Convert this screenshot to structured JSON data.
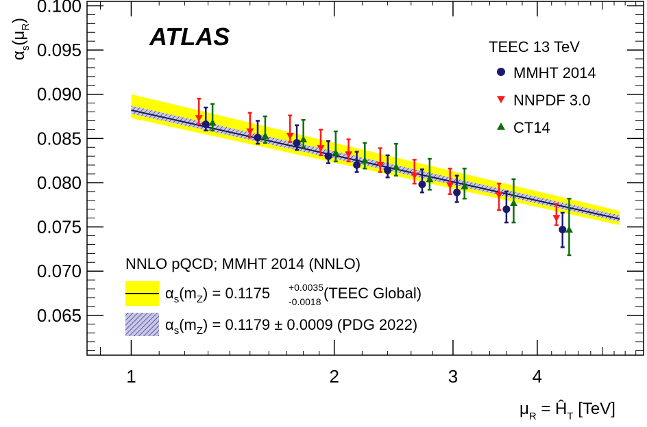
{
  "chart_data": {
    "type": "scatter",
    "experiment_label": "ATLAS",
    "measurement_label": "TEEC 13 TeV",
    "xlabel": {
      "base": "μ",
      "base_sub": "R",
      "eq": " = ",
      "var": "Ĥ",
      "var_sub": "T",
      "unit": " [TeV]"
    },
    "ylabel": {
      "base": "α",
      "base_sub": "s",
      "arg": "μ",
      "arg_sub": "R"
    },
    "xscale": "log",
    "xlim": [
      0.86,
      5.75
    ],
    "ylim": [
      0.0605,
      0.1005
    ],
    "x_ticks": [
      {
        "value": 1,
        "label": "1"
      },
      {
        "value": 2,
        "label": "2"
      },
      {
        "value": 3,
        "label": "3"
      },
      {
        "value": 4,
        "label": "4"
      }
    ],
    "y_ticks": [
      {
        "value": 0.065,
        "label": "0.065"
      },
      {
        "value": 0.07,
        "label": "0.070"
      },
      {
        "value": 0.075,
        "label": "0.075"
      },
      {
        "value": 0.08,
        "label": "0.080"
      },
      {
        "value": 0.085,
        "label": "0.085"
      },
      {
        "value": 0.09,
        "label": "0.090"
      },
      {
        "value": 0.095,
        "label": "0.095"
      },
      {
        "value": 0.1,
        "label": "0.100"
      }
    ],
    "series": [
      {
        "name": "MMHT 2014",
        "marker": "circle",
        "color": "#1a1a6e",
        "points": [
          {
            "x": 1.29,
            "y": 0.0866,
            "err_up": 0.0019,
            "err_down": 0.0007
          },
          {
            "x": 1.54,
            "y": 0.0851,
            "err_up": 0.0019,
            "err_down": 0.0007
          },
          {
            "x": 1.76,
            "y": 0.0845,
            "err_up": 0.002,
            "err_down": 0.0008
          },
          {
            "x": 1.96,
            "y": 0.083,
            "err_up": 0.0017,
            "err_down": 0.0008
          },
          {
            "x": 2.16,
            "y": 0.082,
            "err_up": 0.0015,
            "err_down": 0.0008
          },
          {
            "x": 2.4,
            "y": 0.0814,
            "err_up": 0.0017,
            "err_down": 0.0008
          },
          {
            "x": 2.7,
            "y": 0.0798,
            "err_up": 0.0017,
            "err_down": 0.0009
          },
          {
            "x": 3.04,
            "y": 0.0789,
            "err_up": 0.0019,
            "err_down": 0.0011
          },
          {
            "x": 3.6,
            "y": 0.077,
            "err_up": 0.002,
            "err_down": 0.0015
          },
          {
            "x": 4.36,
            "y": 0.0747,
            "err_up": 0.0019,
            "err_down": 0.002
          }
        ]
      },
      {
        "name": "NNPDF 3.0",
        "marker": "triangle-down",
        "color": "#ff1a1a",
        "points": [
          {
            "x": 1.26,
            "y": 0.0873,
            "err_up": 0.0022,
            "err_down": 0.0007
          },
          {
            "x": 1.5,
            "y": 0.0858,
            "err_up": 0.0021,
            "err_down": 0.0007
          },
          {
            "x": 1.72,
            "y": 0.0853,
            "err_up": 0.0023,
            "err_down": 0.0007
          },
          {
            "x": 1.91,
            "y": 0.0839,
            "err_up": 0.0021,
            "err_down": 0.0008
          },
          {
            "x": 2.1,
            "y": 0.0832,
            "err_up": 0.0017,
            "err_down": 0.0008
          },
          {
            "x": 2.34,
            "y": 0.082,
            "err_up": 0.0019,
            "err_down": 0.0008
          },
          {
            "x": 2.63,
            "y": 0.0808,
            "err_up": 0.0018,
            "err_down": 0.0009
          },
          {
            "x": 2.97,
            "y": 0.0797,
            "err_up": 0.0019,
            "err_down": 0.001
          },
          {
            "x": 3.51,
            "y": 0.0786,
            "err_up": 0.0013,
            "err_down": 0.0017
          },
          {
            "x": 4.27,
            "y": 0.076,
            "err_up": 0.0016,
            "err_down": 0.0008
          }
        ]
      },
      {
        "name": "CT14",
        "marker": "triangle-up",
        "color": "#0e6e0e",
        "points": [
          {
            "x": 1.32,
            "y": 0.0868,
            "err_up": 0.0021,
            "err_down": 0.0009
          },
          {
            "x": 1.58,
            "y": 0.0853,
            "err_up": 0.0022,
            "err_down": 0.0008
          },
          {
            "x": 1.8,
            "y": 0.0849,
            "err_up": 0.0022,
            "err_down": 0.0009
          },
          {
            "x": 2.01,
            "y": 0.0834,
            "err_up": 0.0024,
            "err_down": 0.001
          },
          {
            "x": 2.22,
            "y": 0.0825,
            "err_up": 0.002,
            "err_down": 0.0009
          },
          {
            "x": 2.47,
            "y": 0.0818,
            "err_up": 0.0026,
            "err_down": 0.001
          },
          {
            "x": 2.77,
            "y": 0.0804,
            "err_up": 0.0023,
            "err_down": 0.0012
          },
          {
            "x": 3.12,
            "y": 0.0796,
            "err_up": 0.002,
            "err_down": 0.0014
          },
          {
            "x": 3.69,
            "y": 0.0777,
            "err_up": 0.0027,
            "err_down": 0.0022
          },
          {
            "x": 4.46,
            "y": 0.0747,
            "err_up": 0.0035,
            "err_down": 0.0029
          }
        ]
      }
    ],
    "band_teec": {
      "color": "#ffff00",
      "edge": "#e6e600",
      "x": [
        1.0,
        5.3
      ],
      "center": [
        0.0882,
        0.0759
      ],
      "upper": [
        0.09,
        0.0768
      ],
      "lower": [
        0.0873,
        0.0752
      ]
    },
    "band_pdg": {
      "color": "#8a8ac8",
      "x": [
        1.0,
        5.3
      ],
      "upper": [
        0.0887,
        0.0763
      ],
      "lower": [
        0.0878,
        0.0756
      ]
    },
    "central_line_color": "#1a1a4a",
    "legend_placement": "bottom-left",
    "legend": {
      "header": "NNLO pQCD;  MMHT 2014 (NNLO)",
      "teec": {
        "alpha": "α",
        "alpha_sub": "s",
        "arg": "m",
        "arg_sub": "Z",
        "value": " = 0.1175 ",
        "err_up": "+0.0035",
        "err_down": "-0.0018",
        "tail": " (TEEC Global)"
      },
      "pdg": {
        "alpha": "α",
        "alpha_sub": "s",
        "arg": "m",
        "arg_sub": "Z",
        "value": " = 0.1179 ± 0.0009 (PDG 2022)"
      }
    },
    "grid": false
  }
}
